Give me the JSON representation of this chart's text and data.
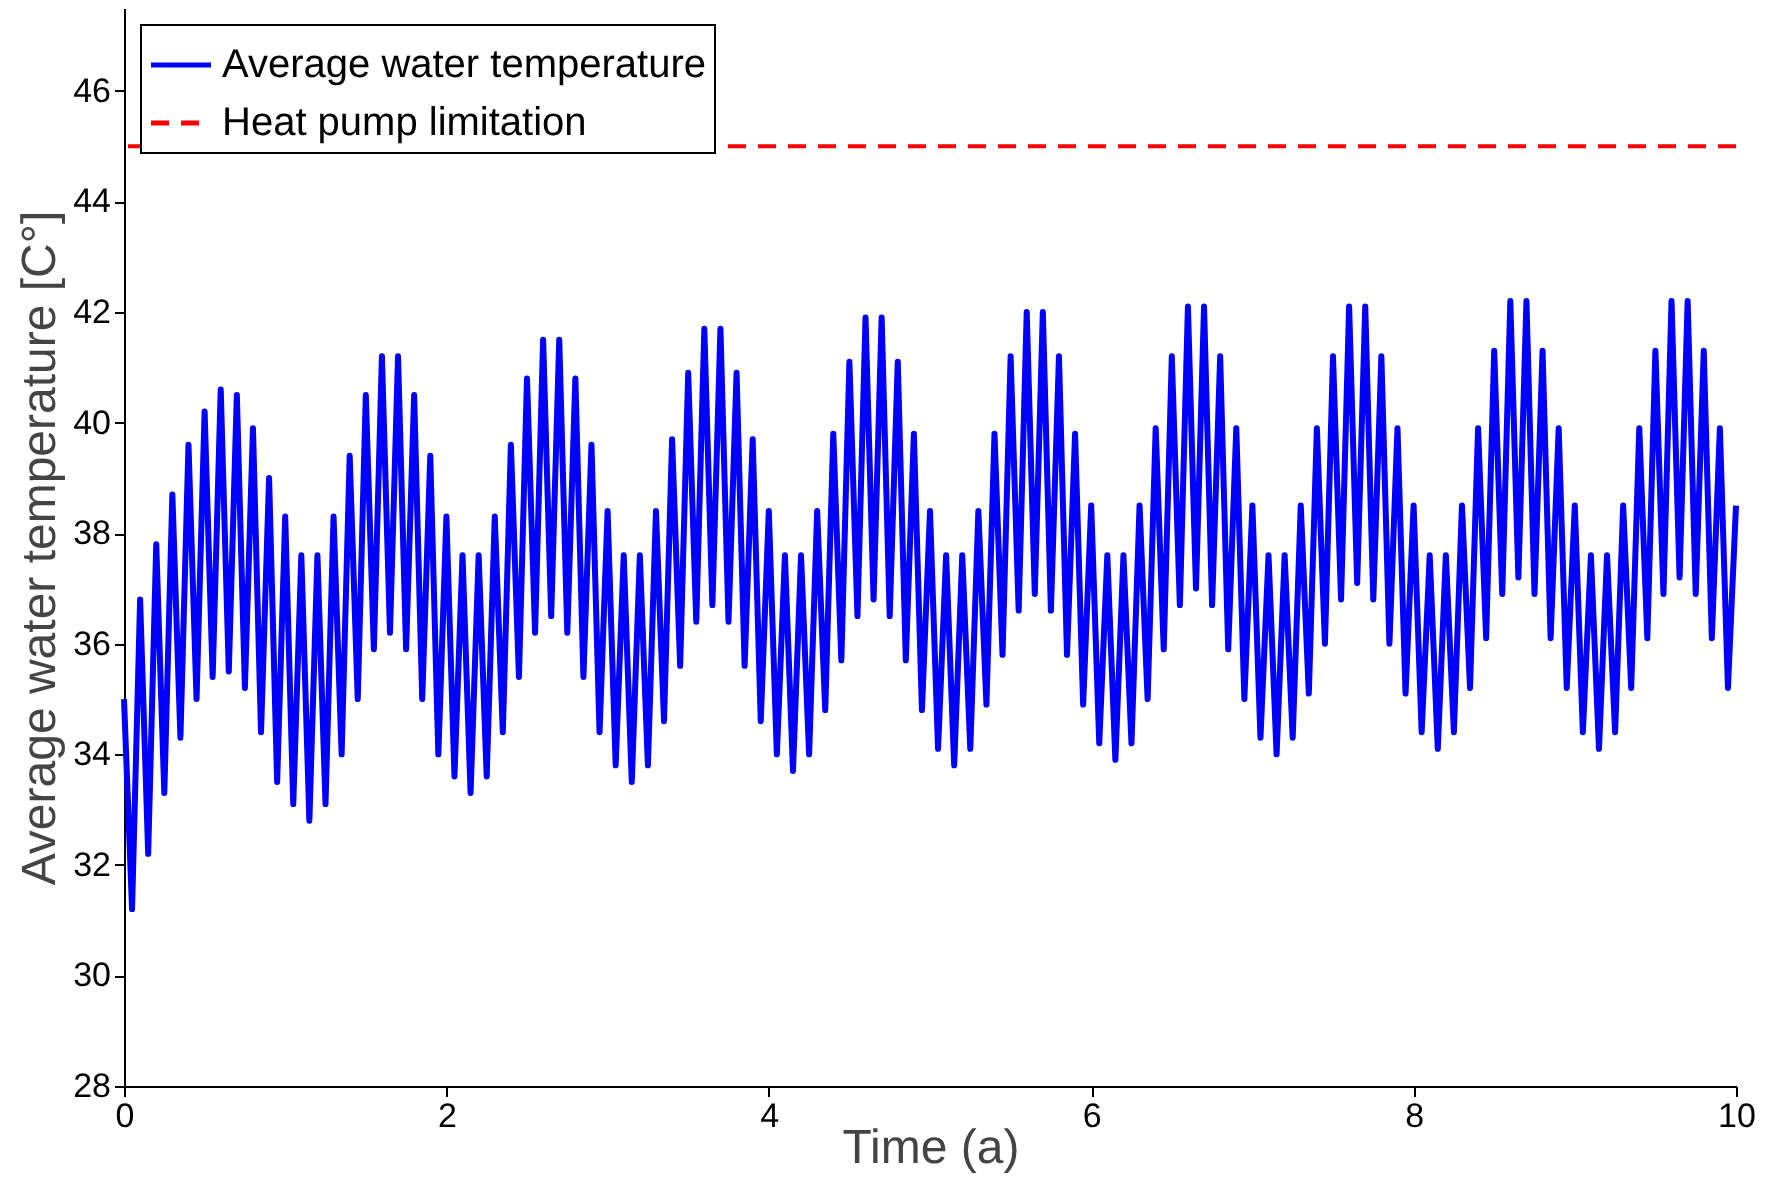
{
  "chart_data": {
    "type": "line",
    "xlabel": "Time (a)",
    "ylabel": "Average water temperature [C°]",
    "xlim": [
      0,
      10
    ],
    "xticks": [
      0,
      2,
      4,
      6,
      8,
      10
    ],
    "ylim": [
      28,
      47.5
    ],
    "yticks": [
      28,
      30,
      32,
      34,
      36,
      38,
      40,
      42,
      44,
      46
    ],
    "grid": false,
    "legend": "top left",
    "marker": "none",
    "line_style": "solid",
    "series": [
      {
        "name": "Average water temperature",
        "color": "#0000ff",
        "x": [
          0,
          0.05,
          0.1,
          0.15,
          0.2,
          0.25,
          0.3,
          0.35,
          0.4,
          0.45,
          0.5,
          0.55,
          0.6,
          0.65,
          0.7,
          0.75,
          0.8,
          0.85,
          0.9,
          0.95,
          1,
          1.05,
          1.1,
          1.15,
          1.2,
          1.25,
          1.3,
          1.35,
          1.4,
          1.45,
          1.5,
          1.55,
          1.6,
          1.65,
          1.7,
          1.75,
          1.8,
          1.85,
          1.9,
          1.95,
          2,
          2.05,
          2.1,
          2.15,
          2.2,
          2.25,
          2.3,
          2.35,
          2.4,
          2.45,
          2.5,
          2.55,
          2.6,
          2.65,
          2.7,
          2.75,
          2.8,
          2.85,
          2.9,
          2.95,
          3,
          3.05,
          3.1,
          3.15,
          3.2,
          3.25,
          3.3,
          3.35,
          3.4,
          3.45,
          3.5,
          3.55,
          3.6,
          3.65,
          3.7,
          3.75,
          3.8,
          3.85,
          3.9,
          3.95,
          4,
          4.05,
          4.1,
          4.15,
          4.2,
          4.25,
          4.3,
          4.35,
          4.4,
          4.45,
          4.5,
          4.55,
          4.6,
          4.65,
          4.7,
          4.75,
          4.8,
          4.85,
          4.9,
          4.95,
          5,
          5.05,
          5.1,
          5.15,
          5.2,
          5.25,
          5.3,
          5.35,
          5.4,
          5.45,
          5.5,
          5.55,
          5.6,
          5.65,
          5.7,
          5.75,
          5.8,
          5.85,
          5.9,
          5.95,
          6,
          6.05,
          6.1,
          6.15,
          6.2,
          6.25,
          6.3,
          6.35,
          6.4,
          6.45,
          6.5,
          6.55,
          6.6,
          6.65,
          6.7,
          6.75,
          6.8,
          6.85,
          6.9,
          6.95,
          7,
          7.05,
          7.1,
          7.15,
          7.2,
          7.25,
          7.3,
          7.35,
          7.4,
          7.45,
          7.5,
          7.55,
          7.6,
          7.65,
          7.7,
          7.75,
          7.8,
          7.85,
          7.9,
          7.95,
          8,
          8.05,
          8.1,
          8.15,
          8.2,
          8.25,
          8.3,
          8.35,
          8.4,
          8.45,
          8.5,
          8.55,
          8.6,
          8.65,
          8.7,
          8.75,
          8.8,
          8.85,
          8.9,
          8.95,
          9,
          9.05,
          9.1,
          9.15,
          9.2,
          9.25,
          9.3,
          9.35,
          9.4,
          9.45,
          9.5,
          9.55,
          9.6,
          9.65,
          9.7,
          9.75,
          9.8,
          9.85,
          9.9,
          9.95,
          10
        ],
        "values": [
          35.0,
          31.2,
          36.8,
          32.2,
          37.8,
          33.3,
          38.7,
          34.3,
          39.6,
          35.0,
          40.2,
          35.4,
          40.6,
          35.5,
          40.5,
          35.2,
          39.9,
          34.4,
          39.0,
          33.5,
          38.3,
          33.1,
          37.6,
          32.8,
          37.6,
          33.1,
          38.3,
          34.0,
          39.4,
          35.0,
          40.5,
          35.9,
          41.2,
          36.2,
          41.2,
          35.9,
          40.5,
          35.0,
          39.4,
          34.0,
          38.3,
          33.6,
          37.6,
          33.3,
          37.6,
          33.6,
          38.3,
          34.4,
          39.6,
          35.4,
          40.8,
          36.2,
          41.5,
          36.5,
          41.5,
          36.2,
          40.8,
          35.4,
          39.6,
          34.4,
          38.4,
          33.8,
          37.6,
          33.5,
          37.6,
          33.8,
          38.4,
          34.6,
          39.7,
          35.6,
          40.9,
          36.4,
          41.7,
          36.7,
          41.7,
          36.4,
          40.9,
          35.6,
          39.7,
          34.6,
          38.4,
          34.0,
          37.6,
          33.7,
          37.6,
          34.0,
          38.4,
          34.8,
          39.8,
          35.7,
          41.1,
          36.5,
          41.9,
          36.8,
          41.9,
          36.5,
          41.1,
          35.7,
          39.8,
          34.8,
          38.4,
          34.1,
          37.6,
          33.8,
          37.6,
          34.1,
          38.4,
          34.9,
          39.8,
          35.8,
          41.2,
          36.6,
          42.0,
          36.9,
          42.0,
          36.6,
          41.2,
          35.8,
          39.8,
          34.9,
          38.5,
          34.2,
          37.6,
          33.9,
          37.6,
          34.2,
          38.5,
          35.0,
          39.9,
          35.9,
          41.2,
          36.7,
          42.1,
          37.0,
          42.1,
          36.7,
          41.2,
          35.9,
          39.9,
          35.0,
          38.5,
          34.3,
          37.6,
          34.0,
          37.6,
          34.3,
          38.5,
          35.1,
          39.9,
          36.0,
          41.2,
          36.8,
          42.1,
          37.1,
          42.1,
          36.8,
          41.2,
          36.0,
          39.9,
          35.1,
          38.5,
          34.4,
          37.6,
          34.1,
          37.6,
          34.4,
          38.5,
          35.2,
          39.9,
          36.1,
          41.3,
          36.9,
          42.2,
          37.2,
          42.2,
          36.9,
          41.3,
          36.1,
          39.9,
          35.2,
          38.5,
          34.4,
          37.6,
          34.1,
          37.6,
          34.4,
          38.5,
          35.2,
          39.9,
          36.1,
          41.3,
          36.9,
          42.2,
          37.2,
          42.2,
          36.9,
          41.3,
          36.1,
          39.9,
          35.2,
          38.5
        ]
      }
    ],
    "ref_lines": [
      {
        "axis": "y",
        "value": 45,
        "label": "Heat pump limitation",
        "color": "#ff0000",
        "line_style": "dashed"
      }
    ]
  }
}
